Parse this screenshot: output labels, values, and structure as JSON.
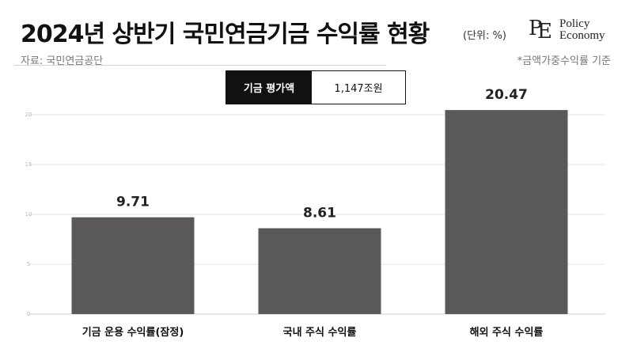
{
  "title": "2024년 상반기 국민연금기금 수익률 현황",
  "unit": "(단위: %)",
  "source": "자료: 국민연금공단",
  "note": "*금액가중수익률 기준",
  "logo": {
    "mark_p": "P",
    "mark_e": "E",
    "line1": "Policy",
    "line2": "Economy"
  },
  "summary": {
    "label": "기금 평가액",
    "value": "1,147조원"
  },
  "colors": {
    "bar": "#5a5859",
    "grid": "#e3e3e3",
    "axis": "#cccccc"
  },
  "chart_data": {
    "type": "bar",
    "categories": [
      "기금 운용 수익률(잠정)",
      "국내 주식 수익률",
      "해외 주식 수익률"
    ],
    "values": [
      9.71,
      8.61,
      20.47
    ],
    "value_labels": [
      "9.71",
      "8.61",
      "20.47"
    ],
    "ylim": [
      0,
      25
    ],
    "yticks": [
      "0",
      "5",
      "10",
      "15",
      "20",
      "25"
    ],
    "grid": true
  }
}
